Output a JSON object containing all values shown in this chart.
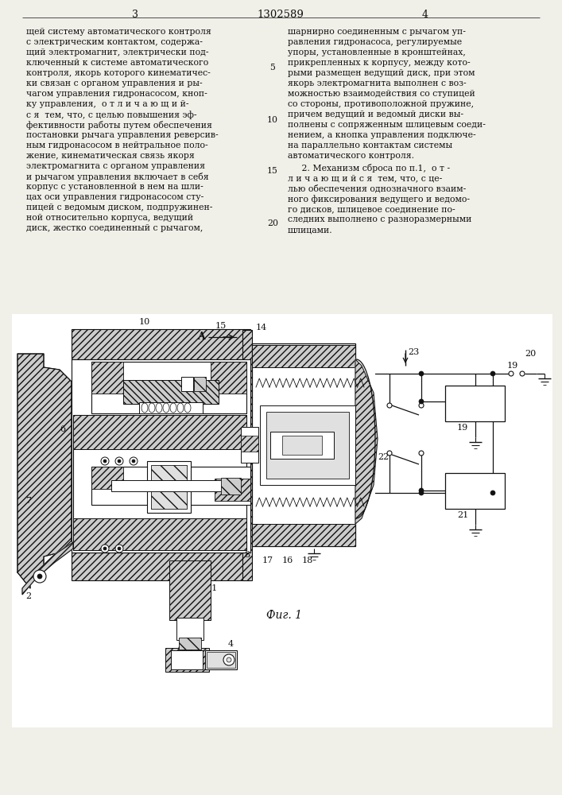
{
  "page_number_left": "3",
  "page_number_center": "1302589",
  "page_number_right": "4",
  "text_left": [
    "щей систему автоматического контроля",
    "с электрическим контактом, содержа-",
    "щий электромагнит, электрически под-",
    "ключенный к системе автоматического",
    "контроля, якорь которого кинематичес-",
    "ки связан с органом управления и ры-",
    "чагом управления гидронасосом, кноп-",
    "ку управления,  о т л и ч а ю щ и й-",
    "с я  тем, что, с целью повышения эф-",
    "фективности работы путем обеспечения",
    "постановки рычага управления реверсив-",
    "ным гидронасосом в нейтральное поло-",
    "жение, кинематическая связь якоря",
    "электромагнита с органом управления",
    "и рычагом управления включает в себя",
    "корпус с установленной в нем на шли-",
    "цах оси управления гидронасосом сту-",
    "пицей с ведомым диском, подпружинен-",
    "ной относительно корпуса, ведущий",
    "диск, жестко соединенный с рычагом,"
  ],
  "text_right": [
    "шарнирно соединенным с рычагом уп-",
    "равления гидронасоса, регулируемые",
    "упоры, установленные в кронштейнах,",
    "прикрепленных к корпусу, между кото-",
    "рыми размещен ведущий диск, при этом",
    "якорь электромагнита выполнен с воз-",
    "можностью взаимодействия со ступицей",
    "со стороны, противоположной пружине,",
    "причем ведущий и ведомый диски вы-",
    "полнены с сопряженным шлицевым соеди-",
    "нением, а кнопка управления подключе-",
    "на параллельно контактам системы",
    "автоматического контроля."
  ],
  "text_right2": [
    "     2. Механизм сброса по п.1,  о т -",
    "л и ч а ю щ и й с я  тем, что, с це-",
    "лью обеспечения однозначного взаим-",
    "ного фиксирования ведущего и ведомо-",
    "го дисков, шлицевое соединение по-",
    "следних выполнено с разноразмерными",
    "шлицами."
  ],
  "line_numbers": [
    "5",
    "10",
    "15",
    "20"
  ],
  "fig_caption": "Фиг. 1",
  "bg_color": "#f0efe8"
}
